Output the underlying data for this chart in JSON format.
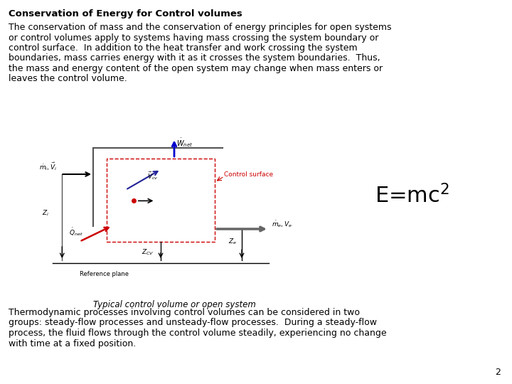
{
  "title": "Conservation of Energy for Control volumes",
  "para1_lines": [
    "The conservation of mass and the conservation of energy principles for open systems",
    "or control volumes apply to systems having mass crossing the system boundary or",
    "control surface.  In addition to the heat transfer and work crossing the system",
    "boundaries, mass carries energy with it as it crosses the system boundaries.  Thus,",
    "the mass and energy content of the open system may change when mass enters or",
    "leaves the control volume."
  ],
  "para2_lines": [
    "Thermodynamic processes involving control volumes can be considered in two",
    "groups: steady-flow processes and unsteady-flow processes.  During a steady-flow",
    "process, the fluid flows through the control volume steadily, experiencing no change",
    "with time at a fixed position."
  ],
  "caption": "Typical control volume or open system",
  "page_num": "2",
  "bg_color": "#ffffff",
  "title_fontsize": 9.5,
  "body_fontsize": 9.0,
  "eq_fontsize": 22,
  "caption_fontsize": 8.5,
  "page_num_fontsize": 9
}
